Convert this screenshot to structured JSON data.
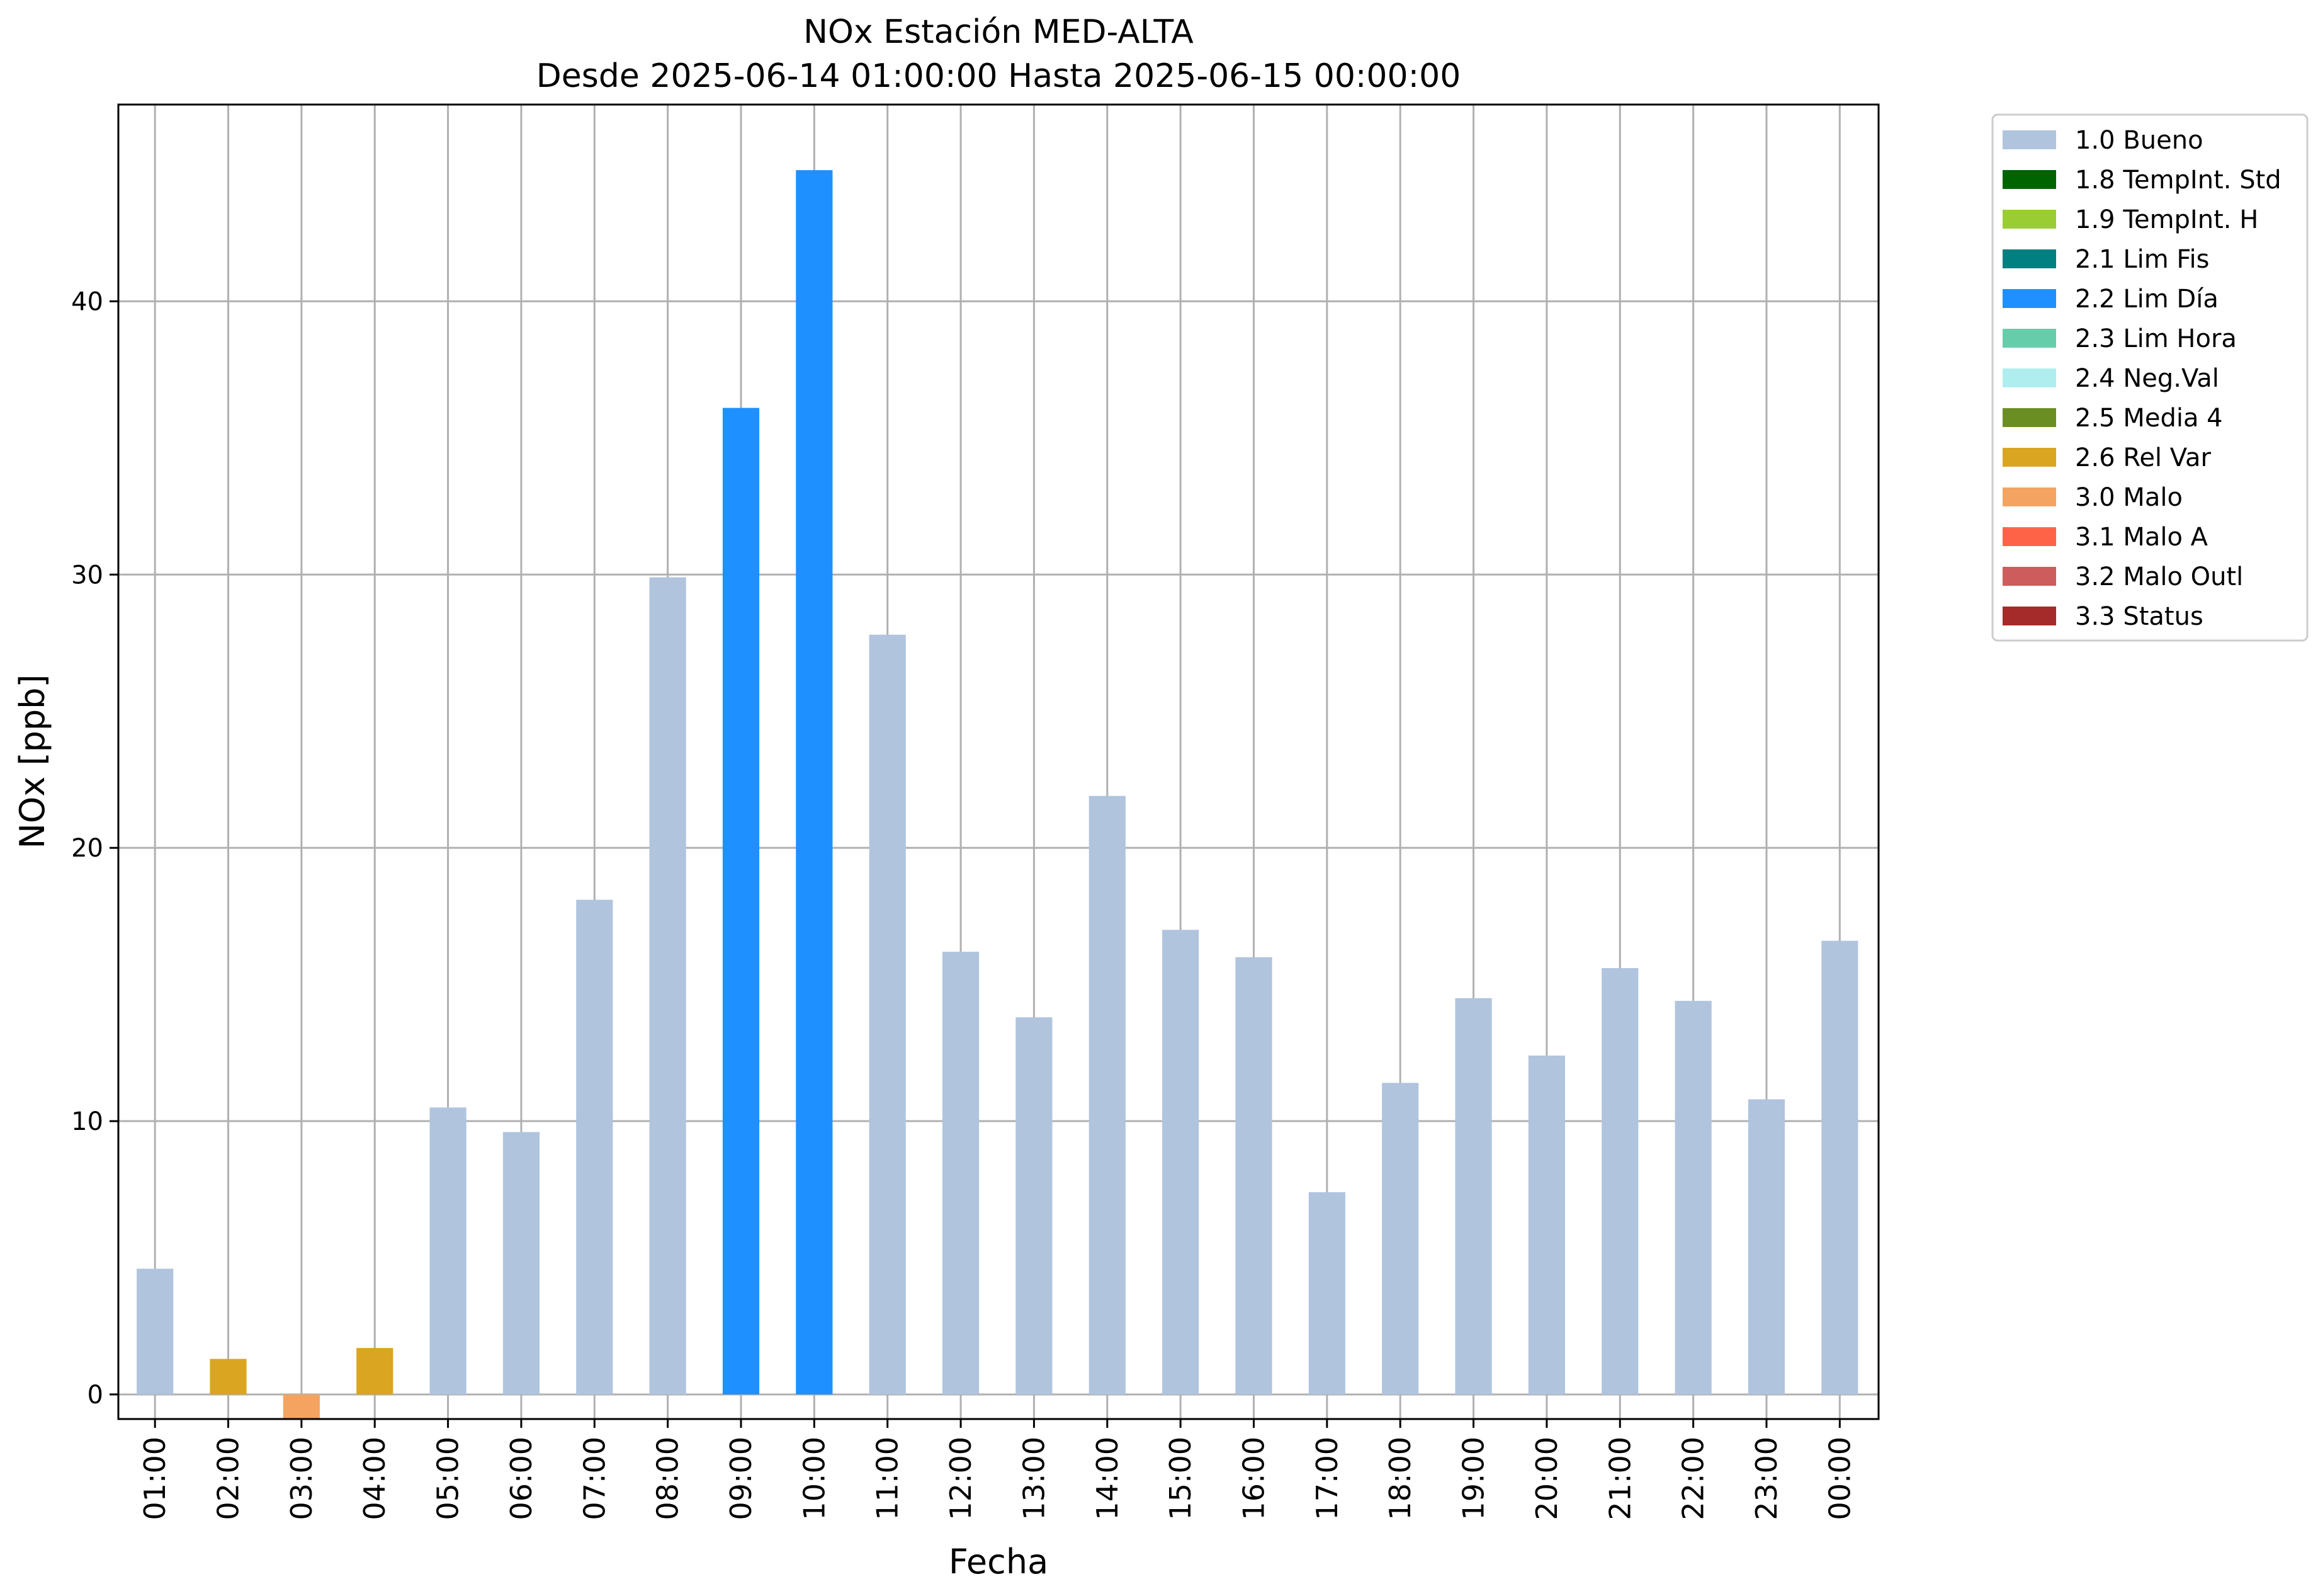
{
  "chart_data": {
    "type": "bar",
    "title": "NOx Estación MED-ALTA",
    "subtitle": "Desde 2025-06-14 01:00:00 Hasta 2025-06-15 00:00:00",
    "xlabel": "Fecha",
    "ylabel": "NOx [ppb]",
    "ylim": [
      -0.9,
      47.2
    ],
    "yticks": [
      0,
      10,
      20,
      30,
      40
    ],
    "grid": true,
    "legend_position": "outside-top-right",
    "categories": [
      "01:00",
      "02:00",
      "03:00",
      "04:00",
      "05:00",
      "06:00",
      "07:00",
      "08:00",
      "09:00",
      "10:00",
      "11:00",
      "12:00",
      "13:00",
      "14:00",
      "15:00",
      "16:00",
      "17:00",
      "18:00",
      "19:00",
      "20:00",
      "21:00",
      "22:00",
      "23:00",
      "00:00"
    ],
    "values": [
      4.6,
      1.3,
      -0.9,
      1.7,
      10.5,
      9.6,
      18.1,
      29.9,
      36.1,
      44.8,
      27.8,
      16.2,
      13.8,
      21.9,
      17.0,
      16.0,
      7.4,
      11.4,
      14.5,
      12.4,
      15.6,
      14.4,
      10.8,
      16.6
    ],
    "flags": [
      "1.0 Bueno",
      "2.6 Rel Var",
      "3.0 Malo",
      "2.6 Rel Var",
      "1.0 Bueno",
      "1.0 Bueno",
      "1.0 Bueno",
      "1.0 Bueno",
      "2.2 Lim Día",
      "2.2 Lim Día",
      "1.0 Bueno",
      "1.0 Bueno",
      "1.0 Bueno",
      "1.0 Bueno",
      "1.0 Bueno",
      "1.0 Bueno",
      "1.0 Bueno",
      "1.0 Bueno",
      "1.0 Bueno",
      "1.0 Bueno",
      "1.0 Bueno",
      "1.0 Bueno",
      "1.0 Bueno",
      "1.0 Bueno"
    ],
    "legend": [
      {
        "label": "1.0 Bueno",
        "color": "#b0c4de"
      },
      {
        "label": "1.8 TempInt. Std",
        "color": "#006400"
      },
      {
        "label": "1.9 TempInt. H",
        "color": "#9acd32"
      },
      {
        "label": "2.1 Lim Fis",
        "color": "#008080"
      },
      {
        "label": "2.2 Lim Día",
        "color": "#1e90ff"
      },
      {
        "label": "2.3 Lim Hora",
        "color": "#66cdaa"
      },
      {
        "label": "2.4 Neg.Val",
        "color": "#afeeee"
      },
      {
        "label": "2.5 Media 4",
        "color": "#6b8e23"
      },
      {
        "label": "2.6 Rel Var",
        "color": "#daa520"
      },
      {
        "label": "3.0 Malo",
        "color": "#f4a460"
      },
      {
        "label": "3.1 Malo A",
        "color": "#ff6347"
      },
      {
        "label": "3.2 Malo Outl",
        "color": "#cd5c5c"
      },
      {
        "label": "3.3 Status",
        "color": "#a52a2a"
      }
    ]
  }
}
